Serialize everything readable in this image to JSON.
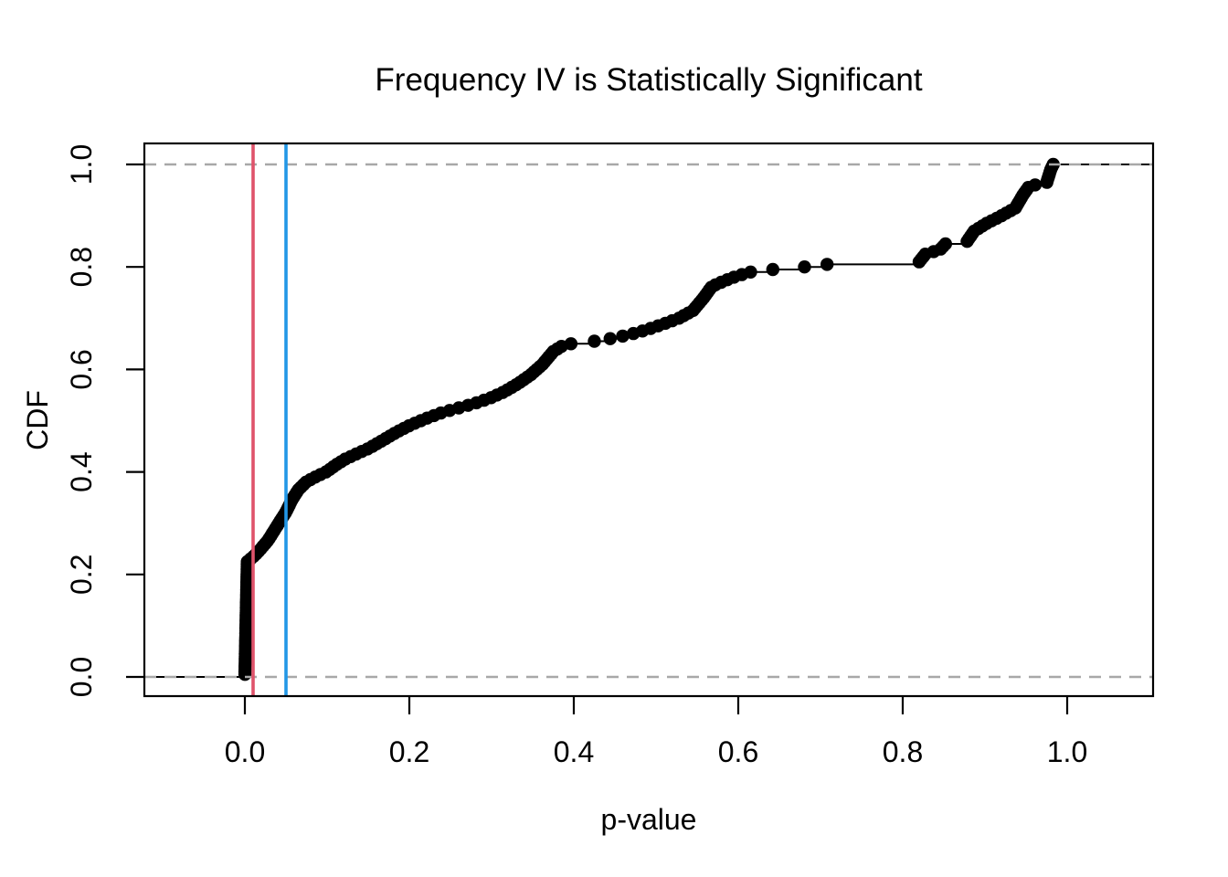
{
  "chart_data": {
    "type": "scatter",
    "subtype": "ecdf-step",
    "title": "Frequency IV is Statistically Significant",
    "xlabel": "p-value",
    "ylabel": "CDF",
    "x_tick_labels": [
      "0.0",
      "0.2",
      "0.4",
      "0.6",
      "0.8",
      "1.0"
    ],
    "x_tick_values": [
      0.0,
      0.2,
      0.4,
      0.6,
      0.8,
      1.0
    ],
    "y_tick_labels": [
      "0.0",
      "0.2",
      "0.4",
      "0.6",
      "0.8",
      "1.0"
    ],
    "y_tick_values": [
      0.0,
      0.2,
      0.4,
      0.6,
      0.8,
      1.0
    ],
    "xlim": [
      -0.122,
      1.104
    ],
    "ylim": [
      -0.037,
      1.041
    ],
    "legend": "none",
    "grid": "horizontal dashed at y=0 and y=1",
    "gridlines_y": [
      0.0,
      1.0
    ],
    "gridline_color": "#A8A8A8",
    "point_color": "#000000",
    "line_color": "#000000",
    "n_points": 200,
    "reference_lines": [
      {
        "orientation": "vertical",
        "x": 0.01,
        "color": "#DF536B"
      },
      {
        "orientation": "vertical",
        "x": 0.05,
        "color": "#2297E6"
      }
    ],
    "cdf_anchors": [
      [
        0.0,
        0.0
      ],
      [
        0.003,
        0.225
      ],
      [
        0.012,
        0.237
      ],
      [
        0.02,
        0.251
      ],
      [
        0.028,
        0.266
      ],
      [
        0.035,
        0.284
      ],
      [
        0.042,
        0.302
      ],
      [
        0.05,
        0.322
      ],
      [
        0.057,
        0.345
      ],
      [
        0.065,
        0.365
      ],
      [
        0.075,
        0.381
      ],
      [
        0.088,
        0.392
      ],
      [
        0.1,
        0.401
      ],
      [
        0.11,
        0.413
      ],
      [
        0.122,
        0.425
      ],
      [
        0.138,
        0.437
      ],
      [
        0.152,
        0.447
      ],
      [
        0.168,
        0.462
      ],
      [
        0.185,
        0.478
      ],
      [
        0.202,
        0.492
      ],
      [
        0.22,
        0.504
      ],
      [
        0.24,
        0.516
      ],
      [
        0.258,
        0.524
      ],
      [
        0.278,
        0.533
      ],
      [
        0.298,
        0.544
      ],
      [
        0.315,
        0.556
      ],
      [
        0.332,
        0.572
      ],
      [
        0.348,
        0.59
      ],
      [
        0.362,
        0.61
      ],
      [
        0.375,
        0.635
      ],
      [
        0.388,
        0.648
      ],
      [
        0.405,
        0.652
      ],
      [
        0.425,
        0.655
      ],
      [
        0.448,
        0.661
      ],
      [
        0.468,
        0.668
      ],
      [
        0.488,
        0.677
      ],
      [
        0.508,
        0.688
      ],
      [
        0.528,
        0.7
      ],
      [
        0.545,
        0.715
      ],
      [
        0.558,
        0.74
      ],
      [
        0.568,
        0.762
      ],
      [
        0.582,
        0.772
      ],
      [
        0.598,
        0.782
      ],
      [
        0.615,
        0.79
      ],
      [
        0.642,
        0.795
      ],
      [
        0.675,
        0.799
      ],
      [
        0.708,
        0.805
      ],
      [
        0.8,
        0.807
      ],
      [
        0.82,
        0.81
      ],
      [
        0.828,
        0.826
      ],
      [
        0.845,
        0.833
      ],
      [
        0.852,
        0.845
      ],
      [
        0.877,
        0.847
      ],
      [
        0.887,
        0.87
      ],
      [
        0.902,
        0.885
      ],
      [
        0.918,
        0.898
      ],
      [
        0.937,
        0.915
      ],
      [
        0.946,
        0.94
      ],
      [
        0.954,
        0.958
      ],
      [
        0.975,
        0.964
      ],
      [
        0.98,
        0.99
      ],
      [
        0.983,
        1.0
      ]
    ]
  }
}
